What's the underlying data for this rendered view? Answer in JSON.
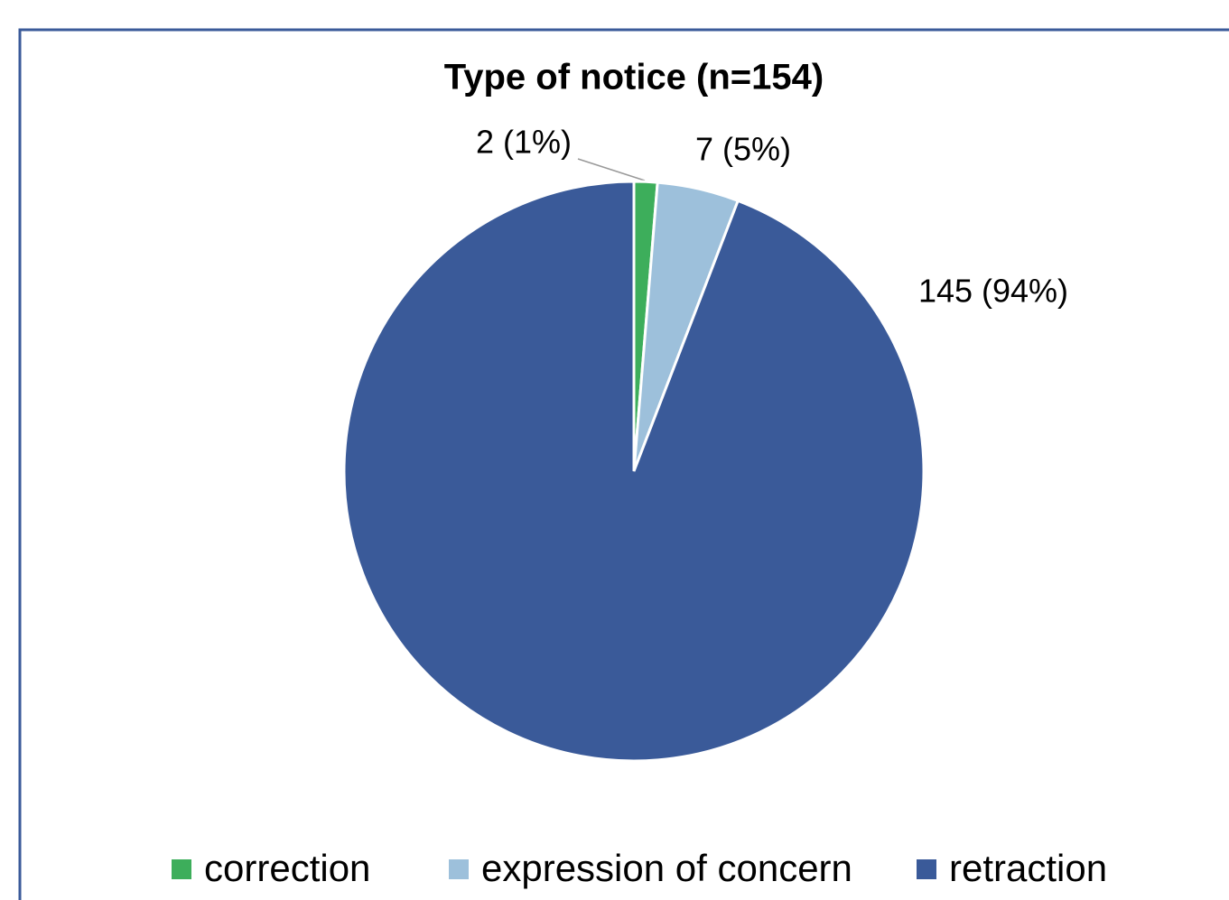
{
  "chart_data": {
    "type": "pie",
    "title": "Type of notice (n=154)",
    "categories": [
      "correction",
      "expression of concern",
      "retraction"
    ],
    "values": [
      2,
      7,
      145
    ],
    "value_labels": [
      "2 (1%)",
      "7 (5%)",
      "145 (94%)"
    ],
    "colors": [
      "#3dae5b",
      "#9dc0db",
      "#3a5a99"
    ],
    "legend": "bottom"
  }
}
